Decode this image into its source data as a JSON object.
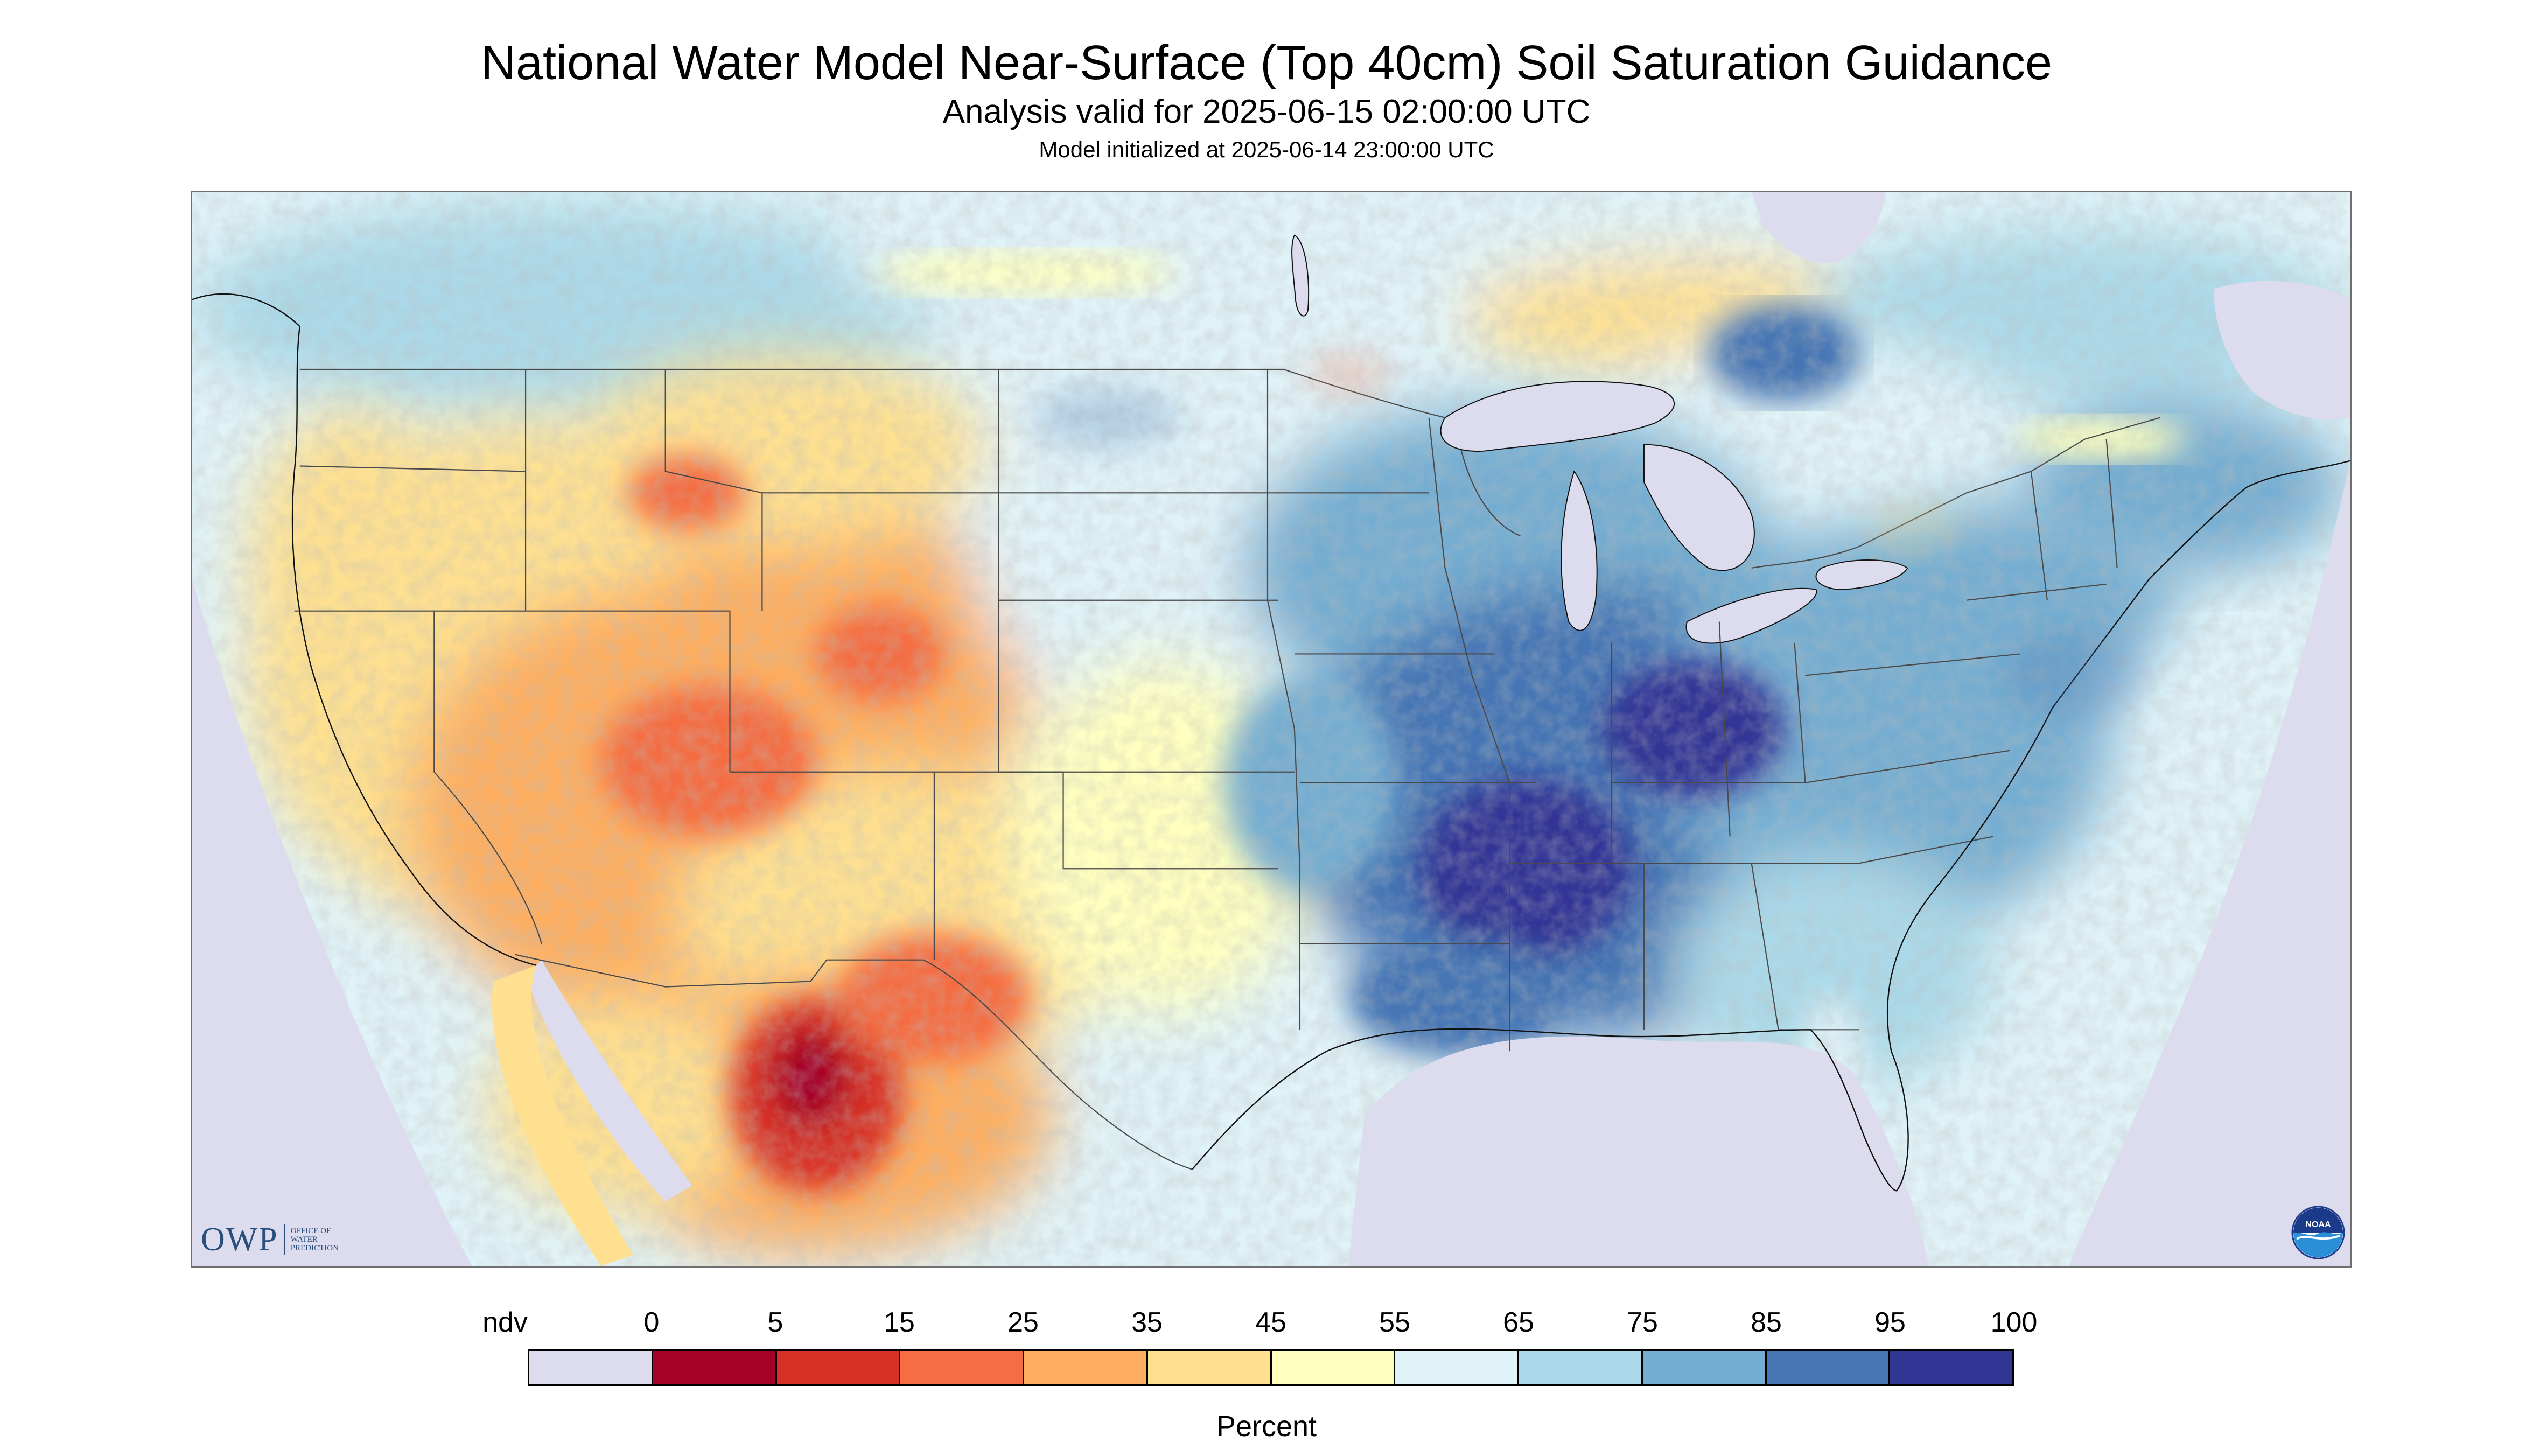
{
  "header": {
    "title": "National Water Model Near-Surface (Top 40cm) Soil Saturation Guidance",
    "subtitle": "Analysis valid for 2025-06-15 02:00:00 UTC",
    "init_line": "Model initialized at 2025-06-14 23:00:00 UTC"
  },
  "logos": {
    "owp_mark": "OWP",
    "owp_text": [
      "OFFICE OF",
      "WATER",
      "PREDICTION"
    ],
    "noaa_text": "NOAA"
  },
  "legend": {
    "labels": [
      "ndv",
      "0",
      "5",
      "15",
      "25",
      "35",
      "45",
      "55",
      "65",
      "75",
      "85",
      "95",
      "100"
    ],
    "colors": [
      "#dcdcee",
      "#a50026",
      "#d73027",
      "#f46d43",
      "#fdae61",
      "#fee090",
      "#ffffbf",
      "#e0f3f8",
      "#abd9e9",
      "#74add1",
      "#4575b4",
      "#313695"
    ],
    "unit": "Percent"
  },
  "map": {
    "background_color": "#e5f3f8",
    "no_data_color": "#dcdcee",
    "water_color": "#dcdcee",
    "border_color": "#4a4a4a",
    "coast_color": "#111111"
  }
}
